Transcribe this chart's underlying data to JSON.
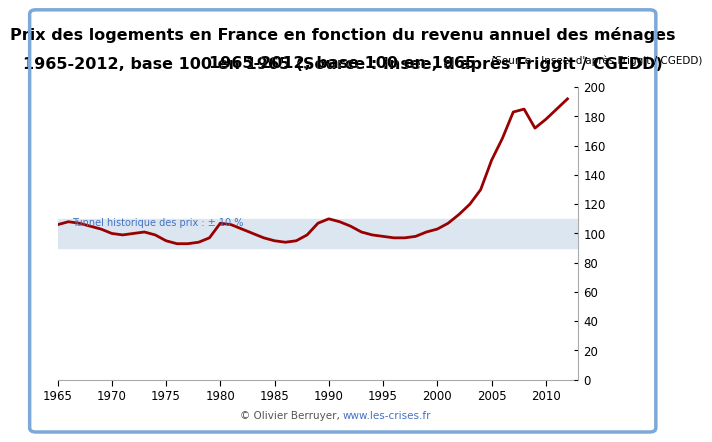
{
  "title_line1": "Prix des logements en France en fonction du revenu annuel des ménages",
  "title_line2": "1965-2012, base 100 en 1965",
  "title_source": " (Source : Insee, d'après Friggit / CGEDD)",
  "tunnel_label": "Tunnel historique des prix : ± 10 %",
  "tunnel_lower": 90,
  "tunnel_upper": 110,
  "tunnel_color": "#dce6f1",
  "tunnel_text_color": "#4472c4",
  "line_color": "#990000",
  "background_color": "#ffffff",
  "border_color": "#7da9d8",
  "footer": "© Olivier Berruyer, www.les-crises.fr",
  "footer_url": "www.les-crises.fr",
  "xlim": [
    1965,
    2013
  ],
  "ylim": [
    0,
    200
  ],
  "yticks": [
    0,
    20,
    40,
    60,
    80,
    100,
    120,
    140,
    160,
    180,
    200
  ],
  "xticks": [
    1965,
    1970,
    1975,
    1980,
    1985,
    1990,
    1995,
    2000,
    2005,
    2010
  ],
  "years": [
    1965,
    1966,
    1967,
    1968,
    1969,
    1970,
    1971,
    1972,
    1973,
    1974,
    1975,
    1976,
    1977,
    1978,
    1979,
    1980,
    1981,
    1982,
    1983,
    1984,
    1985,
    1986,
    1987,
    1988,
    1989,
    1990,
    1991,
    1992,
    1993,
    1994,
    1995,
    1996,
    1997,
    1998,
    1999,
    2000,
    2001,
    2002,
    2003,
    2004,
    2005,
    2006,
    2007,
    2008,
    2009,
    2010,
    2011,
    2012
  ],
  "values": [
    106,
    108,
    107,
    105,
    103,
    100,
    99,
    100,
    101,
    99,
    95,
    93,
    93,
    94,
    97,
    107,
    106,
    103,
    100,
    97,
    95,
    94,
    95,
    99,
    107,
    110,
    108,
    105,
    101,
    99,
    98,
    97,
    97,
    98,
    101,
    103,
    107,
    113,
    120,
    130,
    150,
    165,
    183,
    185,
    172,
    178,
    185,
    192
  ]
}
